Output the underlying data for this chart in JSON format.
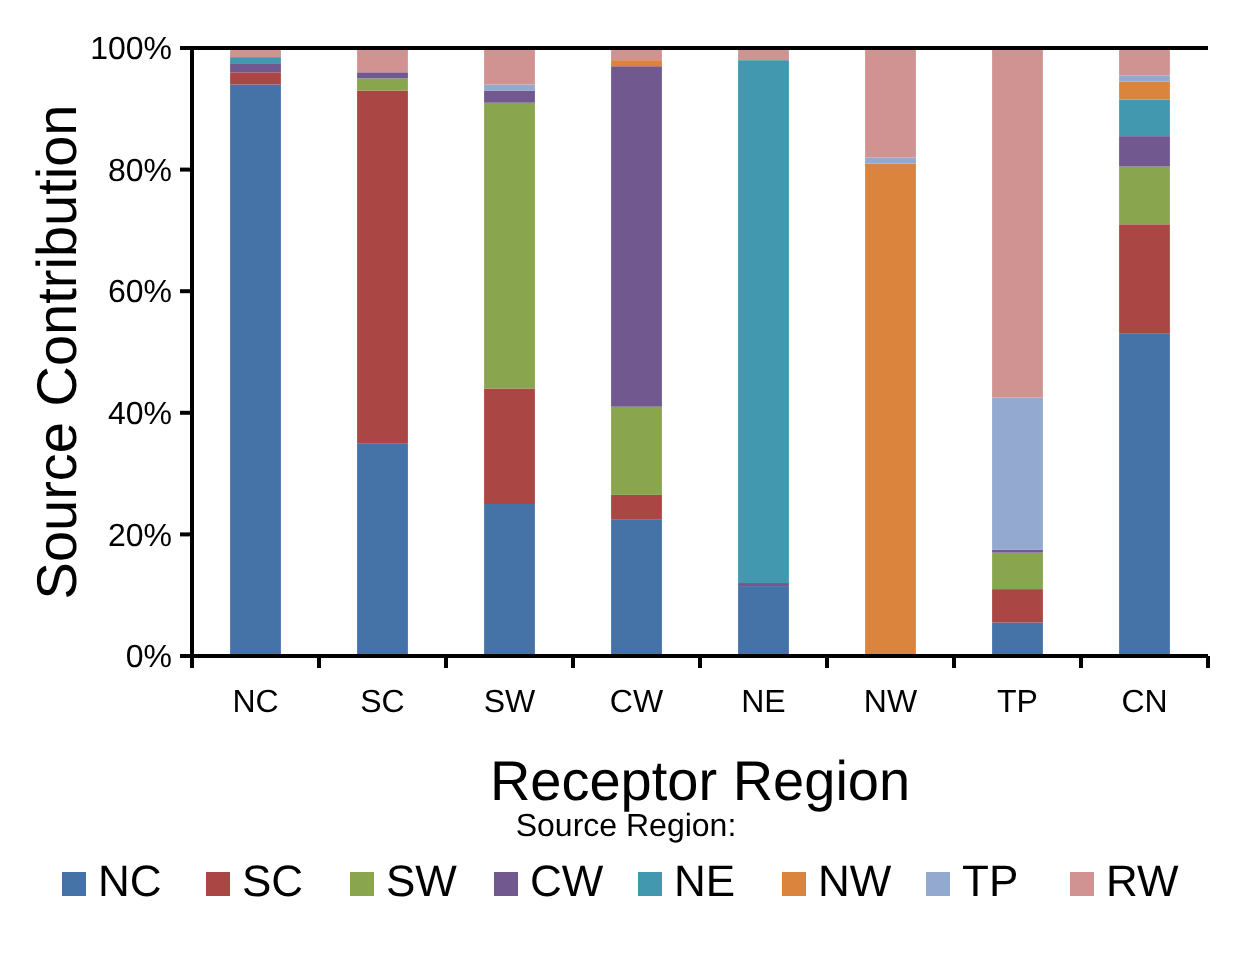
{
  "chart_data": {
    "type": "bar",
    "stacked": true,
    "xlabel": "Receptor Region",
    "ylabel": "Source Contribution",
    "legend_title": "Source Region:",
    "legend": "bottom",
    "grid": false,
    "categories": [
      "NC",
      "SC",
      "SW",
      "CW",
      "NE",
      "NW",
      "TP",
      "CN"
    ],
    "ylim": [
      0,
      100
    ],
    "yticks": [
      {
        "value": 0,
        "label": "0%"
      },
      {
        "value": 20,
        "label": "20%"
      },
      {
        "value": 40,
        "label": "40%"
      },
      {
        "value": 60,
        "label": "60%"
      },
      {
        "value": 80,
        "label": "80%"
      },
      {
        "value": 100,
        "label": "100%"
      }
    ],
    "series": [
      {
        "name": "NC",
        "color": "#4572a7",
        "values": [
          94,
          35,
          25,
          22.5,
          11.5,
          0,
          5.5,
          53
        ]
      },
      {
        "name": "SC",
        "color": "#aa4643",
        "values": [
          2,
          58,
          19,
          4,
          0,
          0,
          5.5,
          18
        ]
      },
      {
        "name": "SW",
        "color": "#89a54e",
        "values": [
          0,
          2,
          47,
          14.5,
          0,
          0,
          6,
          9.5
        ]
      },
      {
        "name": "CW",
        "color": "#71588f",
        "values": [
          1.5,
          1,
          2,
          56,
          0.5,
          0,
          0.5,
          5
        ]
      },
      {
        "name": "NE",
        "color": "#4198af",
        "values": [
          1,
          0,
          0,
          0,
          86,
          0,
          0,
          6
        ]
      },
      {
        "name": "NW",
        "color": "#db843d",
        "values": [
          0,
          0,
          0,
          1,
          0,
          81,
          0,
          3
        ]
      },
      {
        "name": "TP",
        "color": "#93a9cf",
        "values": [
          0,
          0,
          1,
          0,
          0,
          1,
          25,
          1
        ]
      },
      {
        "name": "RW",
        "color": "#d19392",
        "values": [
          1.5,
          4,
          6,
          2,
          2,
          18,
          57.5,
          4.5
        ]
      }
    ]
  }
}
